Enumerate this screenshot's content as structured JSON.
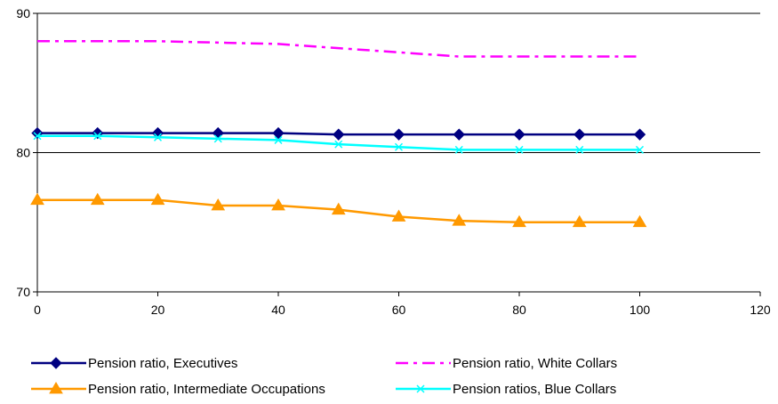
{
  "chart_data": {
    "type": "line",
    "x": [
      0,
      10,
      20,
      30,
      40,
      50,
      60,
      70,
      80,
      90,
      100
    ],
    "xlim": [
      0,
      120
    ],
    "ylim": [
      70,
      90
    ],
    "x_ticks": [
      "0",
      "20",
      "40",
      "60",
      "80",
      "100",
      "120"
    ],
    "y_ticks": [
      "70",
      "80",
      "90"
    ],
    "grid": "horizontal major gridlines at 80 and 90",
    "legend_position": "bottom",
    "series": [
      {
        "name": "Pension ratio, Executives",
        "color": "#000080",
        "marker": "diamond",
        "line": "solid",
        "values": [
          81.4,
          81.4,
          81.4,
          81.4,
          81.4,
          81.3,
          81.3,
          81.3,
          81.3,
          81.3,
          81.3
        ]
      },
      {
        "name": "Pension ratio, White Collars",
        "color": "#FF00FF",
        "marker": "none",
        "line": "dash-dot",
        "values": [
          88.0,
          88.0,
          88.0,
          87.9,
          87.8,
          87.5,
          87.2,
          86.9,
          86.9,
          86.9,
          86.9
        ]
      },
      {
        "name": "Pension ratio, Intermediate Occupations",
        "color": "#FF9900",
        "marker": "triangle",
        "line": "solid",
        "values": [
          76.6,
          76.6,
          76.6,
          76.2,
          76.2,
          75.9,
          75.4,
          75.1,
          75.0,
          75.0,
          75.0
        ]
      },
      {
        "name": "Pension ratios, Blue Collars",
        "color": "#00FFFF",
        "marker": "x",
        "line": "solid",
        "values": [
          81.2,
          81.2,
          81.1,
          81.0,
          80.9,
          80.6,
          80.4,
          80.2,
          80.2,
          80.2,
          80.2
        ]
      }
    ]
  }
}
